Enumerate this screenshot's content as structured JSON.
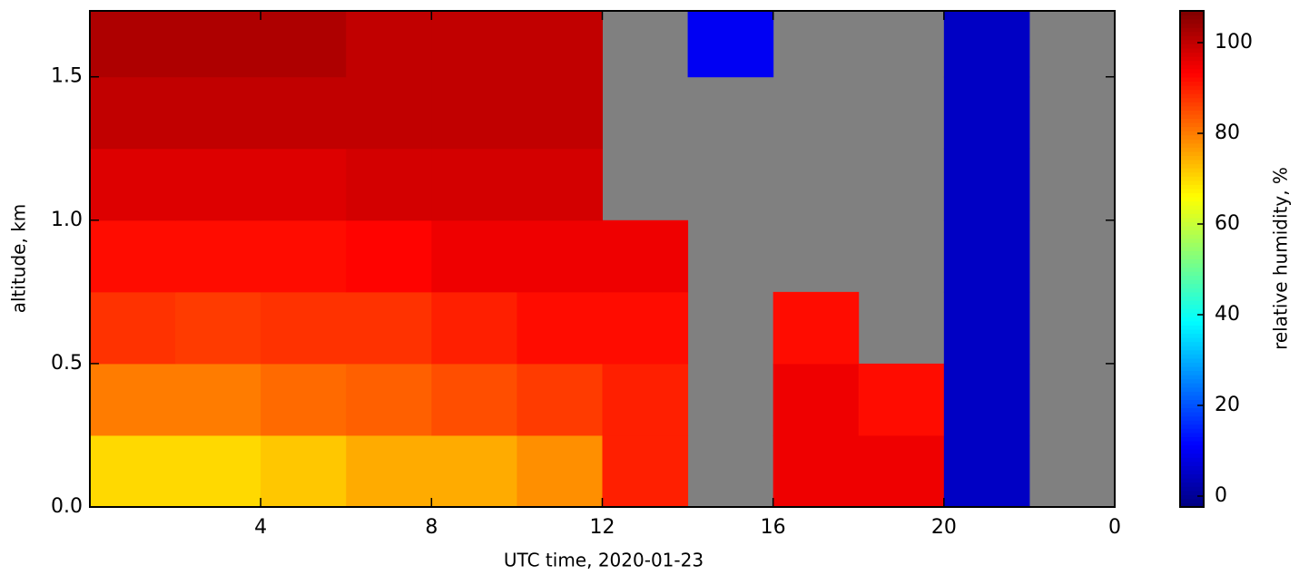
{
  "chart_data": {
    "type": "heatmap",
    "x_label": "UTC time,  2020-01-23",
    "y_label": "altitude, km",
    "colorbar_label": "relative humidity, %",
    "x": [
      0,
      2,
      4,
      6,
      8,
      10,
      12,
      14,
      16,
      18,
      20,
      22,
      24
    ],
    "y": [
      0,
      0.25,
      0.5,
      0.75,
      1.0,
      1.25,
      1.5,
      1.75
    ],
    "values": [
      [
        70,
        70,
        72,
        75,
        75,
        78,
        90,
        null,
        95,
        95,
        5,
        null
      ],
      [
        80,
        80,
        82,
        83,
        85,
        87,
        90,
        null,
        95,
        92,
        5,
        null
      ],
      [
        88,
        87,
        88,
        88,
        90,
        92,
        92,
        null,
        92,
        null,
        5,
        null
      ],
      [
        92,
        92,
        92,
        93,
        95,
        95,
        95,
        null,
        null,
        null,
        5,
        null
      ],
      [
        97,
        97,
        97,
        98,
        98,
        98,
        null,
        null,
        null,
        null,
        5,
        null
      ],
      [
        100,
        100,
        100,
        100,
        100,
        100,
        null,
        null,
        null,
        null,
        5,
        null
      ],
      [
        102,
        102,
        102,
        100,
        100,
        100,
        null,
        10,
        null,
        null,
        5,
        null
      ]
    ],
    "missing_color": "#808080",
    "colormap": "jet",
    "xlim": [
      0,
      24
    ],
    "xticks": [
      4,
      8,
      12,
      16,
      20,
      {
        "value": 24,
        "label": "0"
      }
    ],
    "ylim": [
      0,
      1.73
    ],
    "yticks": [
      {
        "value": 0,
        "label": "0.0"
      },
      0.5,
      {
        "value": 1,
        "label": "1.0"
      },
      1.5
    ],
    "clim": [
      -2.4,
      107
    ],
    "cticks": [
      0,
      20,
      40,
      60,
      80,
      100
    ]
  }
}
